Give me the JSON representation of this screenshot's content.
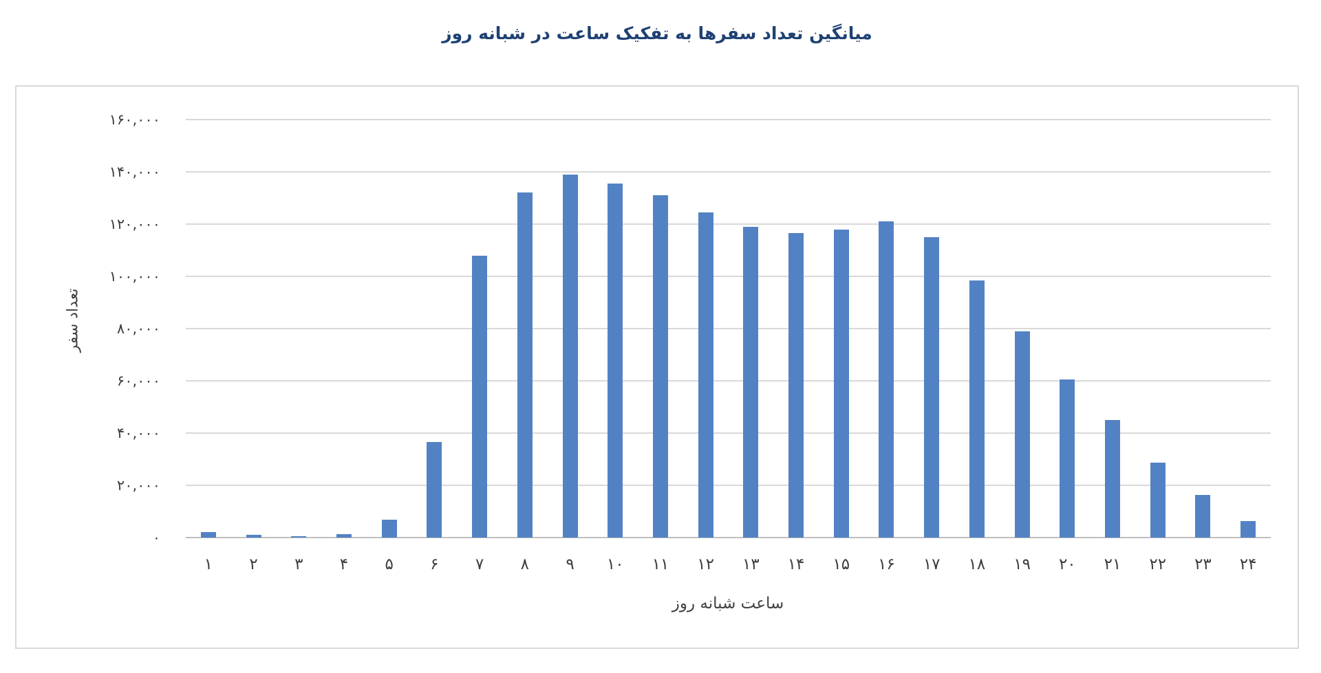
{
  "chart_data": {
    "type": "bar",
    "title": "میانگین تعداد سفرها به تفکیک ساعت در شبانه روز",
    "xlabel": "ساعت شبانه روز",
    "ylabel": "تعداد سفر",
    "categories": [
      "۱",
      "۲",
      "۳",
      "۴",
      "۵",
      "۶",
      "۷",
      "۸",
      "۹",
      "۱۰",
      "۱۱",
      "۱۲",
      "۱۳",
      "۱۴",
      "۱۵",
      "۱۶",
      "۱۷",
      "۱۸",
      "۱۹",
      "۲۰",
      "۲۱",
      "۲۲",
      "۲۳",
      "۲۴"
    ],
    "values": [
      2100,
      1000,
      500,
      1200,
      6800,
      36500,
      108000,
      132000,
      139000,
      135500,
      131000,
      124500,
      119000,
      116500,
      117800,
      121000,
      115000,
      98500,
      79000,
      60500,
      45000,
      28700,
      16300,
      6300
    ],
    "ylim": [
      0,
      160000
    ],
    "ytick_step": 20000,
    "yticks": [
      {
        "value": 0,
        "label": "۰"
      },
      {
        "value": 20000,
        "label": "۲۰,۰۰۰"
      },
      {
        "value": 40000,
        "label": "۴۰,۰۰۰"
      },
      {
        "value": 60000,
        "label": "۶۰,۰۰۰"
      },
      {
        "value": 80000,
        "label": "۸۰,۰۰۰"
      },
      {
        "value": 100000,
        "label": "۱۰۰,۰۰۰"
      },
      {
        "value": 120000,
        "label": "۱۲۰,۰۰۰"
      },
      {
        "value": 140000,
        "label": "۱۴۰,۰۰۰"
      },
      {
        "value": 160000,
        "label": "۱۶۰,۰۰۰"
      }
    ],
    "grid": true,
    "legend": "none",
    "colors": {
      "bar": "#5282c3",
      "gridline": "#d9d9d9",
      "axis_line": "#bfbfbf",
      "tick_label": "#3d3d3d",
      "axis_title": "#404040",
      "chart_title": "#1f4173",
      "panel_border": "#d9d9d9",
      "background": "#ffffff"
    }
  }
}
